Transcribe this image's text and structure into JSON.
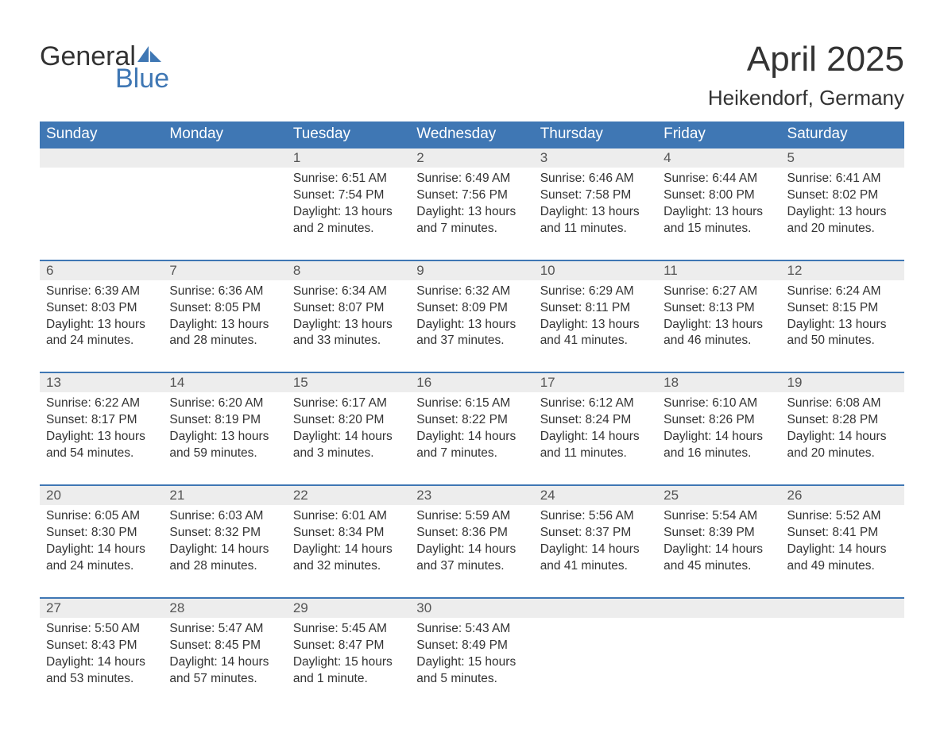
{
  "logo": {
    "word1": "General",
    "word2": "Blue",
    "iconColor": "#3f77b4"
  },
  "title": "April 2025",
  "location": "Heikendorf, Germany",
  "colors": {
    "headerBg": "#3f77b4",
    "headerText": "#ffffff",
    "dayNumBg": "#ededed",
    "rowBorder": "#3f77b4",
    "bodyText": "#333333",
    "pageBg": "#ffffff"
  },
  "weekdays": [
    "Sunday",
    "Monday",
    "Tuesday",
    "Wednesday",
    "Thursday",
    "Friday",
    "Saturday"
  ],
  "weeks": [
    [
      {
        "empty": true
      },
      {
        "empty": true
      },
      {
        "day": "1",
        "sunrise": "6:51 AM",
        "sunset": "7:54 PM",
        "daylight": "13 hours and 2 minutes."
      },
      {
        "day": "2",
        "sunrise": "6:49 AM",
        "sunset": "7:56 PM",
        "daylight": "13 hours and 7 minutes."
      },
      {
        "day": "3",
        "sunrise": "6:46 AM",
        "sunset": "7:58 PM",
        "daylight": "13 hours and 11 minutes."
      },
      {
        "day": "4",
        "sunrise": "6:44 AM",
        "sunset": "8:00 PM",
        "daylight": "13 hours and 15 minutes."
      },
      {
        "day": "5",
        "sunrise": "6:41 AM",
        "sunset": "8:02 PM",
        "daylight": "13 hours and 20 minutes."
      }
    ],
    [
      {
        "day": "6",
        "sunrise": "6:39 AM",
        "sunset": "8:03 PM",
        "daylight": "13 hours and 24 minutes."
      },
      {
        "day": "7",
        "sunrise": "6:36 AM",
        "sunset": "8:05 PM",
        "daylight": "13 hours and 28 minutes."
      },
      {
        "day": "8",
        "sunrise": "6:34 AM",
        "sunset": "8:07 PM",
        "daylight": "13 hours and 33 minutes."
      },
      {
        "day": "9",
        "sunrise": "6:32 AM",
        "sunset": "8:09 PM",
        "daylight": "13 hours and 37 minutes."
      },
      {
        "day": "10",
        "sunrise": "6:29 AM",
        "sunset": "8:11 PM",
        "daylight": "13 hours and 41 minutes."
      },
      {
        "day": "11",
        "sunrise": "6:27 AM",
        "sunset": "8:13 PM",
        "daylight": "13 hours and 46 minutes."
      },
      {
        "day": "12",
        "sunrise": "6:24 AM",
        "sunset": "8:15 PM",
        "daylight": "13 hours and 50 minutes."
      }
    ],
    [
      {
        "day": "13",
        "sunrise": "6:22 AM",
        "sunset": "8:17 PM",
        "daylight": "13 hours and 54 minutes."
      },
      {
        "day": "14",
        "sunrise": "6:20 AM",
        "sunset": "8:19 PM",
        "daylight": "13 hours and 59 minutes."
      },
      {
        "day": "15",
        "sunrise": "6:17 AM",
        "sunset": "8:20 PM",
        "daylight": "14 hours and 3 minutes."
      },
      {
        "day": "16",
        "sunrise": "6:15 AM",
        "sunset": "8:22 PM",
        "daylight": "14 hours and 7 minutes."
      },
      {
        "day": "17",
        "sunrise": "6:12 AM",
        "sunset": "8:24 PM",
        "daylight": "14 hours and 11 minutes."
      },
      {
        "day": "18",
        "sunrise": "6:10 AM",
        "sunset": "8:26 PM",
        "daylight": "14 hours and 16 minutes."
      },
      {
        "day": "19",
        "sunrise": "6:08 AM",
        "sunset": "8:28 PM",
        "daylight": "14 hours and 20 minutes."
      }
    ],
    [
      {
        "day": "20",
        "sunrise": "6:05 AM",
        "sunset": "8:30 PM",
        "daylight": "14 hours and 24 minutes."
      },
      {
        "day": "21",
        "sunrise": "6:03 AM",
        "sunset": "8:32 PM",
        "daylight": "14 hours and 28 minutes."
      },
      {
        "day": "22",
        "sunrise": "6:01 AM",
        "sunset": "8:34 PM",
        "daylight": "14 hours and 32 minutes."
      },
      {
        "day": "23",
        "sunrise": "5:59 AM",
        "sunset": "8:36 PM",
        "daylight": "14 hours and 37 minutes."
      },
      {
        "day": "24",
        "sunrise": "5:56 AM",
        "sunset": "8:37 PM",
        "daylight": "14 hours and 41 minutes."
      },
      {
        "day": "25",
        "sunrise": "5:54 AM",
        "sunset": "8:39 PM",
        "daylight": "14 hours and 45 minutes."
      },
      {
        "day": "26",
        "sunrise": "5:52 AM",
        "sunset": "8:41 PM",
        "daylight": "14 hours and 49 minutes."
      }
    ],
    [
      {
        "day": "27",
        "sunrise": "5:50 AM",
        "sunset": "8:43 PM",
        "daylight": "14 hours and 53 minutes."
      },
      {
        "day": "28",
        "sunrise": "5:47 AM",
        "sunset": "8:45 PM",
        "daylight": "14 hours and 57 minutes."
      },
      {
        "day": "29",
        "sunrise": "5:45 AM",
        "sunset": "8:47 PM",
        "daylight": "15 hours and 1 minute."
      },
      {
        "day": "30",
        "sunrise": "5:43 AM",
        "sunset": "8:49 PM",
        "daylight": "15 hours and 5 minutes."
      },
      {
        "empty": true
      },
      {
        "empty": true
      },
      {
        "empty": true
      }
    ]
  ],
  "labels": {
    "sunrisePrefix": "Sunrise: ",
    "sunsetPrefix": "Sunset: ",
    "daylightPrefix": "Daylight: "
  }
}
